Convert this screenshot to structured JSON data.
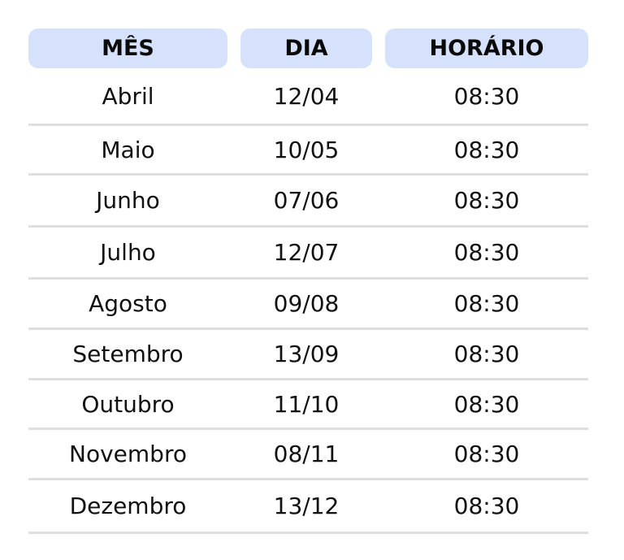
{
  "headers": [
    "MÊS",
    "DIA",
    "HORÁRIO"
  ],
  "header_color": "#d6e2fc",
  "rows": [
    [
      "Abril",
      "12/04",
      "08:30"
    ],
    [
      "Maio",
      "10/05",
      "08:30"
    ],
    [
      "Junho",
      "07/06",
      "08:30"
    ],
    [
      "Julho",
      "12/07",
      "08:30"
    ],
    [
      "Agosto",
      "09/08",
      "08:30"
    ],
    [
      "Setembro",
      "13/09",
      "08:30"
    ],
    [
      "Outubro",
      "11/10",
      "08:30"
    ],
    [
      "Novembro",
      "08/11",
      "08:30"
    ],
    [
      "Dezembro",
      "13/12",
      "08:30"
    ]
  ]
}
